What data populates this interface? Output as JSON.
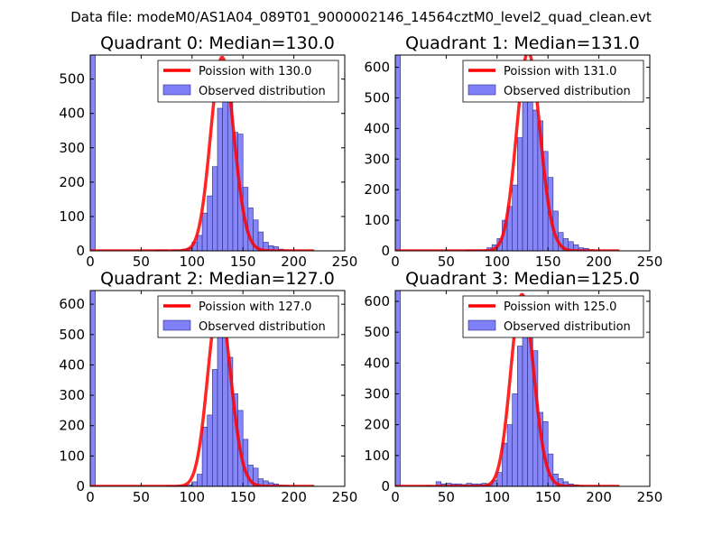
{
  "figure": {
    "suptitle": "Data file: modeM0/AS1A04_089T01_9000002146_14564cztM0_level2_quad_clean.evt"
  },
  "colors": {
    "bar_fill": "#7f7ff7",
    "bar_edge": "#2a2a8a",
    "poisson_line": "#ff0000",
    "axis": "#000000"
  },
  "chart_data": [
    {
      "type": "bar",
      "title": "Quadrant 0: Median=130.0",
      "median": 130.0,
      "xlim": [
        0,
        250
      ],
      "ylim": [
        0,
        570
      ],
      "xticks": [
        0,
        50,
        100,
        150,
        200,
        250
      ],
      "yticks": [
        0,
        100,
        200,
        300,
        400,
        500
      ],
      "bin_width": 5,
      "legend": [
        "Poission with 130.0",
        "Observed distribution"
      ],
      "bins": [
        {
          "x": 0,
          "y": 570
        },
        {
          "x": 65,
          "y": 2
        },
        {
          "x": 70,
          "y": 3
        },
        {
          "x": 80,
          "y": 3
        },
        {
          "x": 85,
          "y": 2
        },
        {
          "x": 90,
          "y": 5
        },
        {
          "x": 95,
          "y": 8
        },
        {
          "x": 100,
          "y": 25
        },
        {
          "x": 105,
          "y": 45
        },
        {
          "x": 110,
          "y": 110
        },
        {
          "x": 115,
          "y": 160
        },
        {
          "x": 120,
          "y": 245
        },
        {
          "x": 125,
          "y": 415
        },
        {
          "x": 130,
          "y": 465
        },
        {
          "x": 135,
          "y": 530
        },
        {
          "x": 140,
          "y": 345
        },
        {
          "x": 145,
          "y": 340
        },
        {
          "x": 150,
          "y": 185
        },
        {
          "x": 155,
          "y": 125
        },
        {
          "x": 160,
          "y": 90
        },
        {
          "x": 165,
          "y": 55
        },
        {
          "x": 170,
          "y": 25
        },
        {
          "x": 175,
          "y": 15
        },
        {
          "x": 180,
          "y": 12
        },
        {
          "x": 185,
          "y": 5
        },
        {
          "x": 190,
          "y": 3
        }
      ]
    },
    {
      "type": "bar",
      "title": "Quadrant 1: Median=131.0",
      "median": 131.0,
      "xlim": [
        0,
        250
      ],
      "ylim": [
        0,
        640
      ],
      "xticks": [
        0,
        50,
        100,
        150,
        200,
        250
      ],
      "yticks": [
        0,
        100,
        200,
        300,
        400,
        500,
        600
      ],
      "bin_width": 5,
      "legend": [
        "Poission with 131.0",
        "Observed distribution"
      ],
      "bins": [
        {
          "x": 0,
          "y": 640
        },
        {
          "x": 70,
          "y": 3
        },
        {
          "x": 75,
          "y": 3
        },
        {
          "x": 80,
          "y": 3
        },
        {
          "x": 85,
          "y": 3
        },
        {
          "x": 90,
          "y": 10
        },
        {
          "x": 95,
          "y": 20
        },
        {
          "x": 100,
          "y": 40
        },
        {
          "x": 105,
          "y": 100
        },
        {
          "x": 110,
          "y": 145
        },
        {
          "x": 115,
          "y": 215
        },
        {
          "x": 120,
          "y": 370
        },
        {
          "x": 125,
          "y": 525
        },
        {
          "x": 130,
          "y": 540
        },
        {
          "x": 135,
          "y": 460
        },
        {
          "x": 140,
          "y": 425
        },
        {
          "x": 145,
          "y": 325
        },
        {
          "x": 150,
          "y": 240
        },
        {
          "x": 155,
          "y": 130
        },
        {
          "x": 160,
          "y": 60
        },
        {
          "x": 165,
          "y": 40
        },
        {
          "x": 170,
          "y": 30
        },
        {
          "x": 175,
          "y": 20
        },
        {
          "x": 180,
          "y": 10
        },
        {
          "x": 185,
          "y": 8
        },
        {
          "x": 190,
          "y": 4
        }
      ]
    },
    {
      "type": "bar",
      "title": "Quadrant 2: Median=127.0",
      "median": 127.0,
      "xlim": [
        0,
        250
      ],
      "ylim": [
        0,
        645
      ],
      "xticks": [
        0,
        50,
        100,
        150,
        200,
        250
      ],
      "yticks": [
        0,
        100,
        200,
        300,
        400,
        500,
        600
      ],
      "bin_width": 5,
      "legend": [
        "Poission with 127.0",
        "Observed distribution"
      ],
      "bins": [
        {
          "x": 0,
          "y": 645
        },
        {
          "x": 75,
          "y": 3
        },
        {
          "x": 80,
          "y": 3
        },
        {
          "x": 85,
          "y": 3
        },
        {
          "x": 90,
          "y": 3
        },
        {
          "x": 95,
          "y": 5
        },
        {
          "x": 100,
          "y": 15
        },
        {
          "x": 105,
          "y": 40
        },
        {
          "x": 110,
          "y": 195
        },
        {
          "x": 115,
          "y": 235
        },
        {
          "x": 120,
          "y": 385
        },
        {
          "x": 125,
          "y": 610
        },
        {
          "x": 130,
          "y": 590
        },
        {
          "x": 135,
          "y": 425
        },
        {
          "x": 140,
          "y": 305
        },
        {
          "x": 145,
          "y": 250
        },
        {
          "x": 150,
          "y": 155
        },
        {
          "x": 155,
          "y": 70
        },
        {
          "x": 160,
          "y": 60
        },
        {
          "x": 165,
          "y": 25
        },
        {
          "x": 170,
          "y": 18
        },
        {
          "x": 175,
          "y": 12
        },
        {
          "x": 180,
          "y": 8
        },
        {
          "x": 185,
          "y": 4
        },
        {
          "x": 190,
          "y": 3
        }
      ]
    },
    {
      "type": "bar",
      "title": "Quadrant 3: Median=125.0",
      "median": 125.0,
      "xlim": [
        0,
        250
      ],
      "ylim": [
        0,
        635
      ],
      "xticks": [
        0,
        50,
        100,
        150,
        200,
        250
      ],
      "yticks": [
        0,
        100,
        200,
        300,
        400,
        500,
        600
      ],
      "bin_width": 5,
      "legend": [
        "Poission with 125.0",
        "Observed distribution"
      ],
      "bins": [
        {
          "x": 0,
          "y": 635
        },
        {
          "x": 30,
          "y": 3
        },
        {
          "x": 40,
          "y": 15
        },
        {
          "x": 45,
          "y": 8
        },
        {
          "x": 50,
          "y": 10
        },
        {
          "x": 55,
          "y": 8
        },
        {
          "x": 60,
          "y": 8
        },
        {
          "x": 65,
          "y": 6
        },
        {
          "x": 70,
          "y": 10
        },
        {
          "x": 75,
          "y": 8
        },
        {
          "x": 80,
          "y": 8
        },
        {
          "x": 85,
          "y": 10
        },
        {
          "x": 90,
          "y": 8
        },
        {
          "x": 95,
          "y": 20
        },
        {
          "x": 100,
          "y": 45
        },
        {
          "x": 105,
          "y": 140
        },
        {
          "x": 110,
          "y": 200
        },
        {
          "x": 115,
          "y": 300
        },
        {
          "x": 120,
          "y": 455
        },
        {
          "x": 125,
          "y": 600
        },
        {
          "x": 130,
          "y": 535
        },
        {
          "x": 135,
          "y": 440
        },
        {
          "x": 140,
          "y": 240
        },
        {
          "x": 145,
          "y": 210
        },
        {
          "x": 150,
          "y": 105
        },
        {
          "x": 155,
          "y": 40
        },
        {
          "x": 160,
          "y": 25
        },
        {
          "x": 165,
          "y": 15
        },
        {
          "x": 170,
          "y": 8
        },
        {
          "x": 175,
          "y": 5
        },
        {
          "x": 180,
          "y": 3
        }
      ]
    }
  ]
}
